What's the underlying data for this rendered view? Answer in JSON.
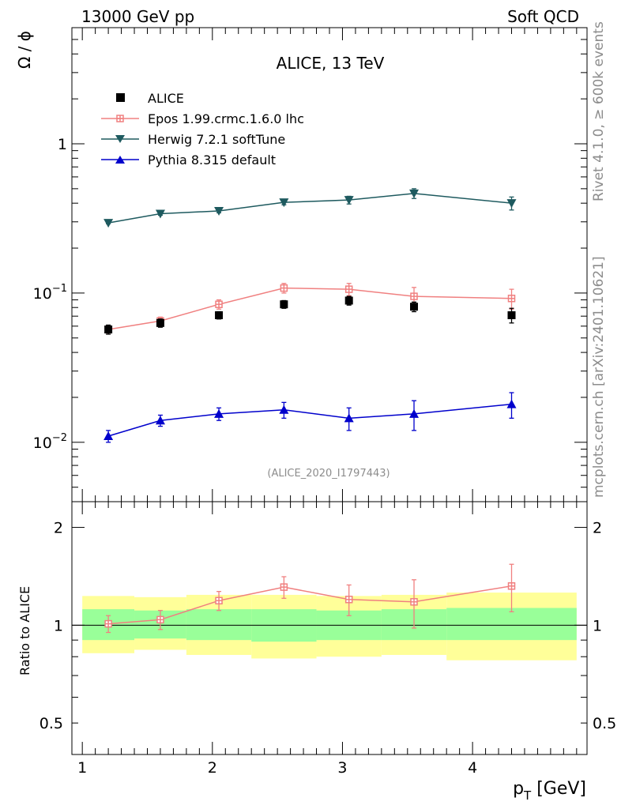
{
  "header": {
    "left": "13000 GeV pp",
    "right": "Soft QCD"
  },
  "side_labels": {
    "top": "Rivet 4.1.0, ≥ 600k events",
    "bottom": "mcplots.cern.ch [arXiv:2401.10621]"
  },
  "watermark": "(ALICE_2020_I1797443)",
  "colors": {
    "epos": "#f08080",
    "herwig": "#1e5a5f",
    "pythia": "#0000cc",
    "data": "#000000",
    "band_inner": "#99ff99",
    "band_outer": "#ffff99"
  },
  "chart_data": [
    {
      "type": "line",
      "title": "ALICE, 13 TeV",
      "ylabel": "Ω / ϕ",
      "yscale": "log",
      "ylim": [
        0.004,
        6
      ],
      "xlim": [
        0.92,
        4.88
      ],
      "yticks": [
        {
          "value": 0.01,
          "base": "10",
          "exp": "−2"
        },
        {
          "value": 0.1,
          "base": "10",
          "exp": "−1"
        },
        {
          "value": 1,
          "label": "1"
        }
      ],
      "legend": [
        "ALICE",
        "Epos 1.99.crmc.1.6.0 lhc",
        "Herwig 7.2.1 softTune",
        "Pythia 8.315 default"
      ],
      "legend_position": "top-left",
      "x": [
        1.2,
        1.6,
        2.05,
        2.55,
        3.05,
        3.55,
        4.3
      ],
      "x_edges": [
        1.0,
        1.4,
        1.8,
        2.3,
        2.8,
        3.3,
        3.8,
        4.8
      ],
      "data": {
        "name": "ALICE",
        "values": [
          0.057,
          0.063,
          0.071,
          0.084,
          0.089,
          0.081,
          0.071
        ],
        "errors": [
          0.004,
          0.004,
          0.004,
          0.005,
          0.006,
          0.006,
          0.008
        ]
      },
      "series": [
        {
          "name": "Epos 1.99.crmc.1.6.0 lhc",
          "key": "epos",
          "marker": "cross",
          "values": [
            0.057,
            0.065,
            0.084,
            0.108,
            0.106,
            0.095,
            0.092
          ],
          "errors": [
            0.003,
            0.004,
            0.006,
            0.008,
            0.01,
            0.014,
            0.014
          ]
        },
        {
          "name": "Herwig 7.2.1 softTune",
          "key": "herwig",
          "marker": "triangle-down",
          "values": [
            0.295,
            0.34,
            0.355,
            0.405,
            0.42,
            0.465,
            0.4
          ],
          "errors": [
            0.004,
            0.008,
            0.01,
            0.015,
            0.025,
            0.035,
            0.04
          ]
        },
        {
          "name": "Pythia 8.315 default",
          "key": "pythia",
          "marker": "triangle-up",
          "values": [
            0.011,
            0.014,
            0.0155,
            0.0165,
            0.0145,
            0.0155,
            0.018
          ],
          "errors": [
            0.001,
            0.0012,
            0.0015,
            0.002,
            0.0025,
            0.0035,
            0.0035
          ]
        }
      ]
    },
    {
      "type": "line",
      "ylabel": "Ratio to ALICE",
      "xlabel_main": "p",
      "xlabel_sub": "T",
      "xlabel_unit": " [GeV]",
      "ylim": [
        0.4,
        2.4
      ],
      "xlim": [
        0.92,
        4.88
      ],
      "xticks": [
        1,
        2,
        3,
        4
      ],
      "yticks": [
        {
          "value": 0.5,
          "label": "0.5"
        },
        {
          "value": 1,
          "label": "1"
        },
        {
          "value": 2,
          "label": "2"
        }
      ],
      "reference_line": 1,
      "band_inner": [
        [
          0.9,
          1.12
        ],
        [
          0.91,
          1.11
        ],
        [
          0.9,
          1.12
        ],
        [
          0.89,
          1.12
        ],
        [
          0.9,
          1.11
        ],
        [
          0.9,
          1.12
        ],
        [
          0.9,
          1.13
        ]
      ],
      "band_outer": [
        [
          0.82,
          1.23
        ],
        [
          0.84,
          1.22
        ],
        [
          0.81,
          1.24
        ],
        [
          0.79,
          1.24
        ],
        [
          0.8,
          1.23
        ],
        [
          0.81,
          1.24
        ],
        [
          0.78,
          1.26
        ]
      ],
      "series": [
        {
          "name": "Epos 1.99.crmc.1.6.0 lhc",
          "key": "epos",
          "values": [
            1.01,
            1.04,
            1.19,
            1.31,
            1.2,
            1.18,
            1.32
          ],
          "errors": [
            0.06,
            0.07,
            0.08,
            0.1,
            0.13,
            0.2,
            0.22
          ]
        }
      ]
    }
  ]
}
